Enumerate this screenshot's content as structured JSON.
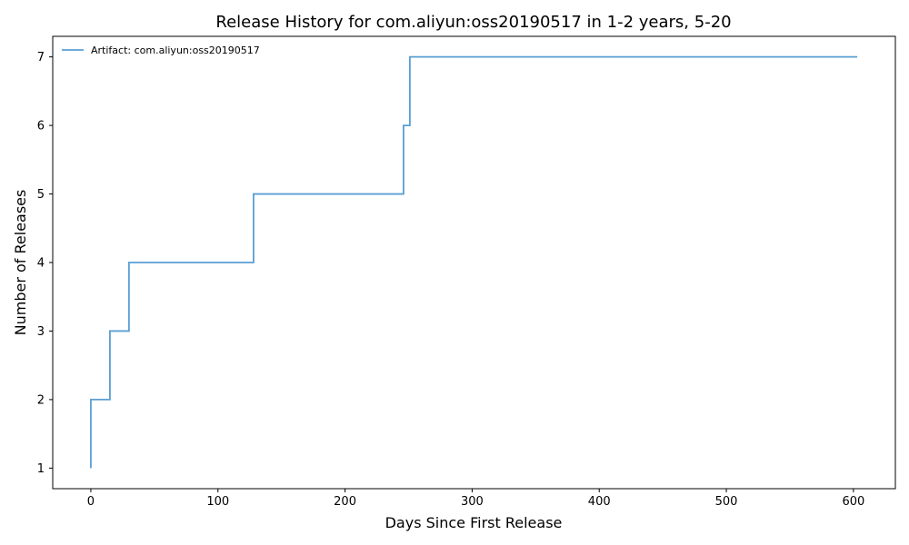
{
  "chart_data": {
    "type": "line",
    "step": true,
    "title": "Release History for com.aliyun:oss20190517 in 1-2 years, 5-20",
    "xlabel": "Days Since First Release",
    "ylabel": "Number of Releases",
    "xlim": [
      -30,
      633
    ],
    "ylim": [
      0.7,
      7.3
    ],
    "xticks": [
      0,
      100,
      200,
      300,
      400,
      500,
      600
    ],
    "yticks": [
      1,
      2,
      3,
      4,
      5,
      6,
      7
    ],
    "grid": false,
    "legend_position": "top-left",
    "series": [
      {
        "name": "Artifact: com.aliyun:oss20190517",
        "color": "#5a9fd4",
        "x": [
          0,
          0,
          15,
          30,
          128,
          246,
          251,
          603
        ],
        "y": [
          1,
          2,
          3,
          4,
          5,
          6,
          7,
          7
        ]
      }
    ]
  }
}
